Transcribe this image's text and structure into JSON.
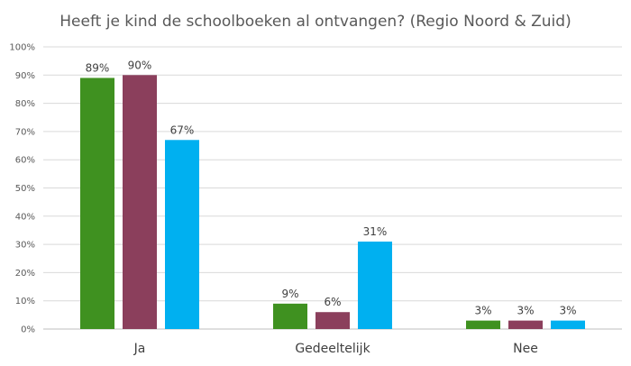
{
  "chart_data": {
    "type": "bar",
    "title": "Heeft je kind de schoolboeken al ontvangen? (Regio Noord & Zuid)",
    "xlabel": "",
    "ylabel": "",
    "categories": [
      "Ja",
      "Gedeeltelijk",
      "Nee"
    ],
    "series": [
      {
        "values": [
          89,
          9,
          3
        ],
        "labels": [
          "89%",
          "9%",
          "3%"
        ],
        "color": "#3f9120"
      },
      {
        "values": [
          90,
          6,
          3
        ],
        "labels": [
          "90%",
          "6%",
          "3%"
        ],
        "color": "#8b3f5c"
      },
      {
        "values": [
          67,
          31,
          3
        ],
        "labels": [
          "67%",
          "31%",
          "3%"
        ],
        "color": "#00b0f0"
      }
    ],
    "ylim": [
      0,
      100
    ],
    "yticks": [
      "0%",
      "10%",
      "20%",
      "30%",
      "40%",
      "50%",
      "60%",
      "70%",
      "80%",
      "90%",
      "100%"
    ],
    "grid": true,
    "legend": "none"
  }
}
